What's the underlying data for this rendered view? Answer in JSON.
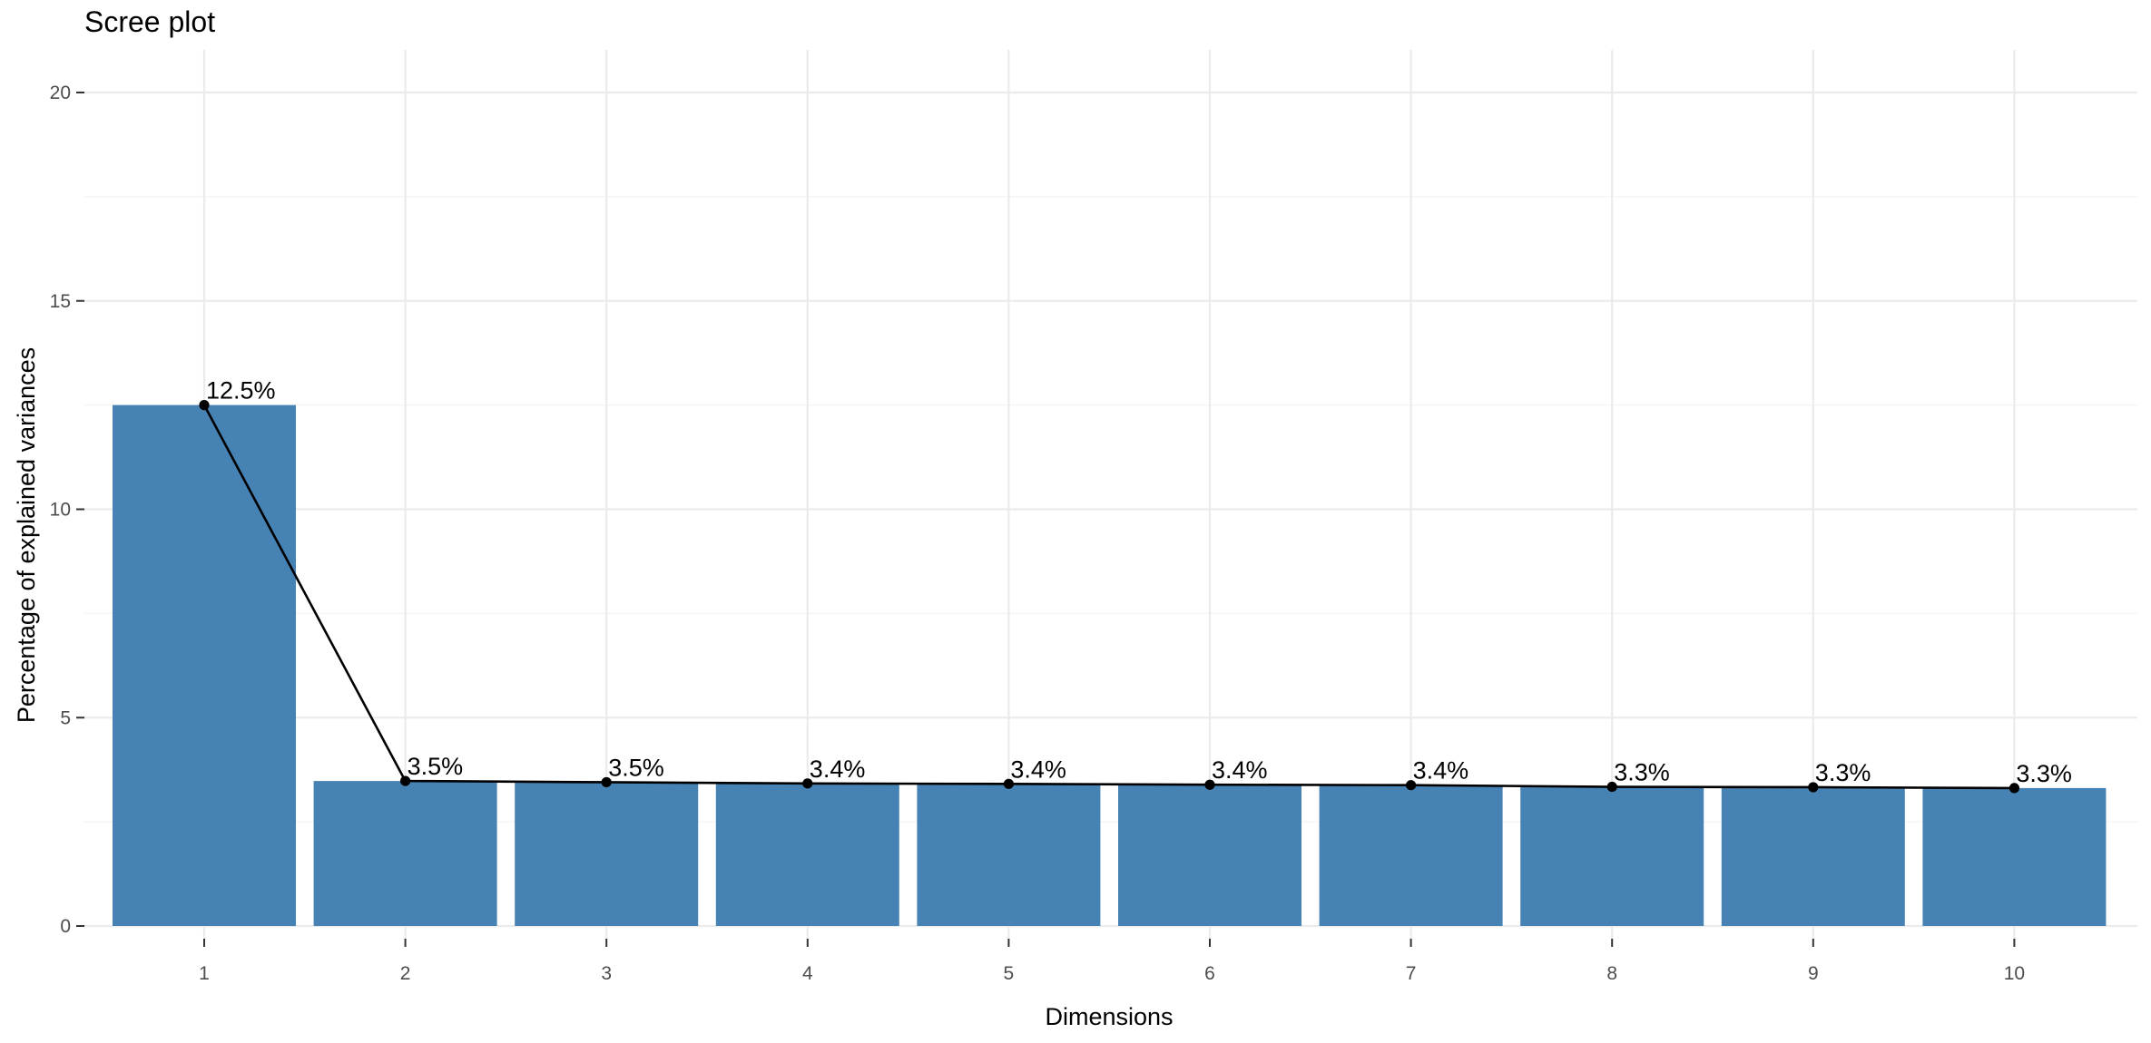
{
  "chart_data": {
    "type": "bar",
    "title": "Scree plot",
    "xlabel": "Dimensions",
    "ylabel": "Percentage of explained variances",
    "categories": [
      "1",
      "2",
      "3",
      "4",
      "5",
      "6",
      "7",
      "8",
      "9",
      "10"
    ],
    "values": [
      12.5,
      3.48,
      3.45,
      3.42,
      3.41,
      3.39,
      3.38,
      3.34,
      3.33,
      3.31
    ],
    "data_labels": [
      "12.5%",
      "3.5%",
      "3.5%",
      "3.4%",
      "3.4%",
      "3.4%",
      "3.4%",
      "3.3%",
      "3.3%",
      "3.3%"
    ],
    "yticks": [
      0,
      5,
      10,
      15,
      20
    ],
    "ytick_labels": [
      "0",
      "5",
      "10",
      "15",
      "20"
    ],
    "ylim": [
      0,
      20
    ],
    "grid": true,
    "legend": "none",
    "line_overlay": true,
    "colors": {
      "bar": "#4682B4",
      "line": "#000000",
      "grid_major": "#ebebeb",
      "grid_minor": "#f5f5f5"
    }
  }
}
